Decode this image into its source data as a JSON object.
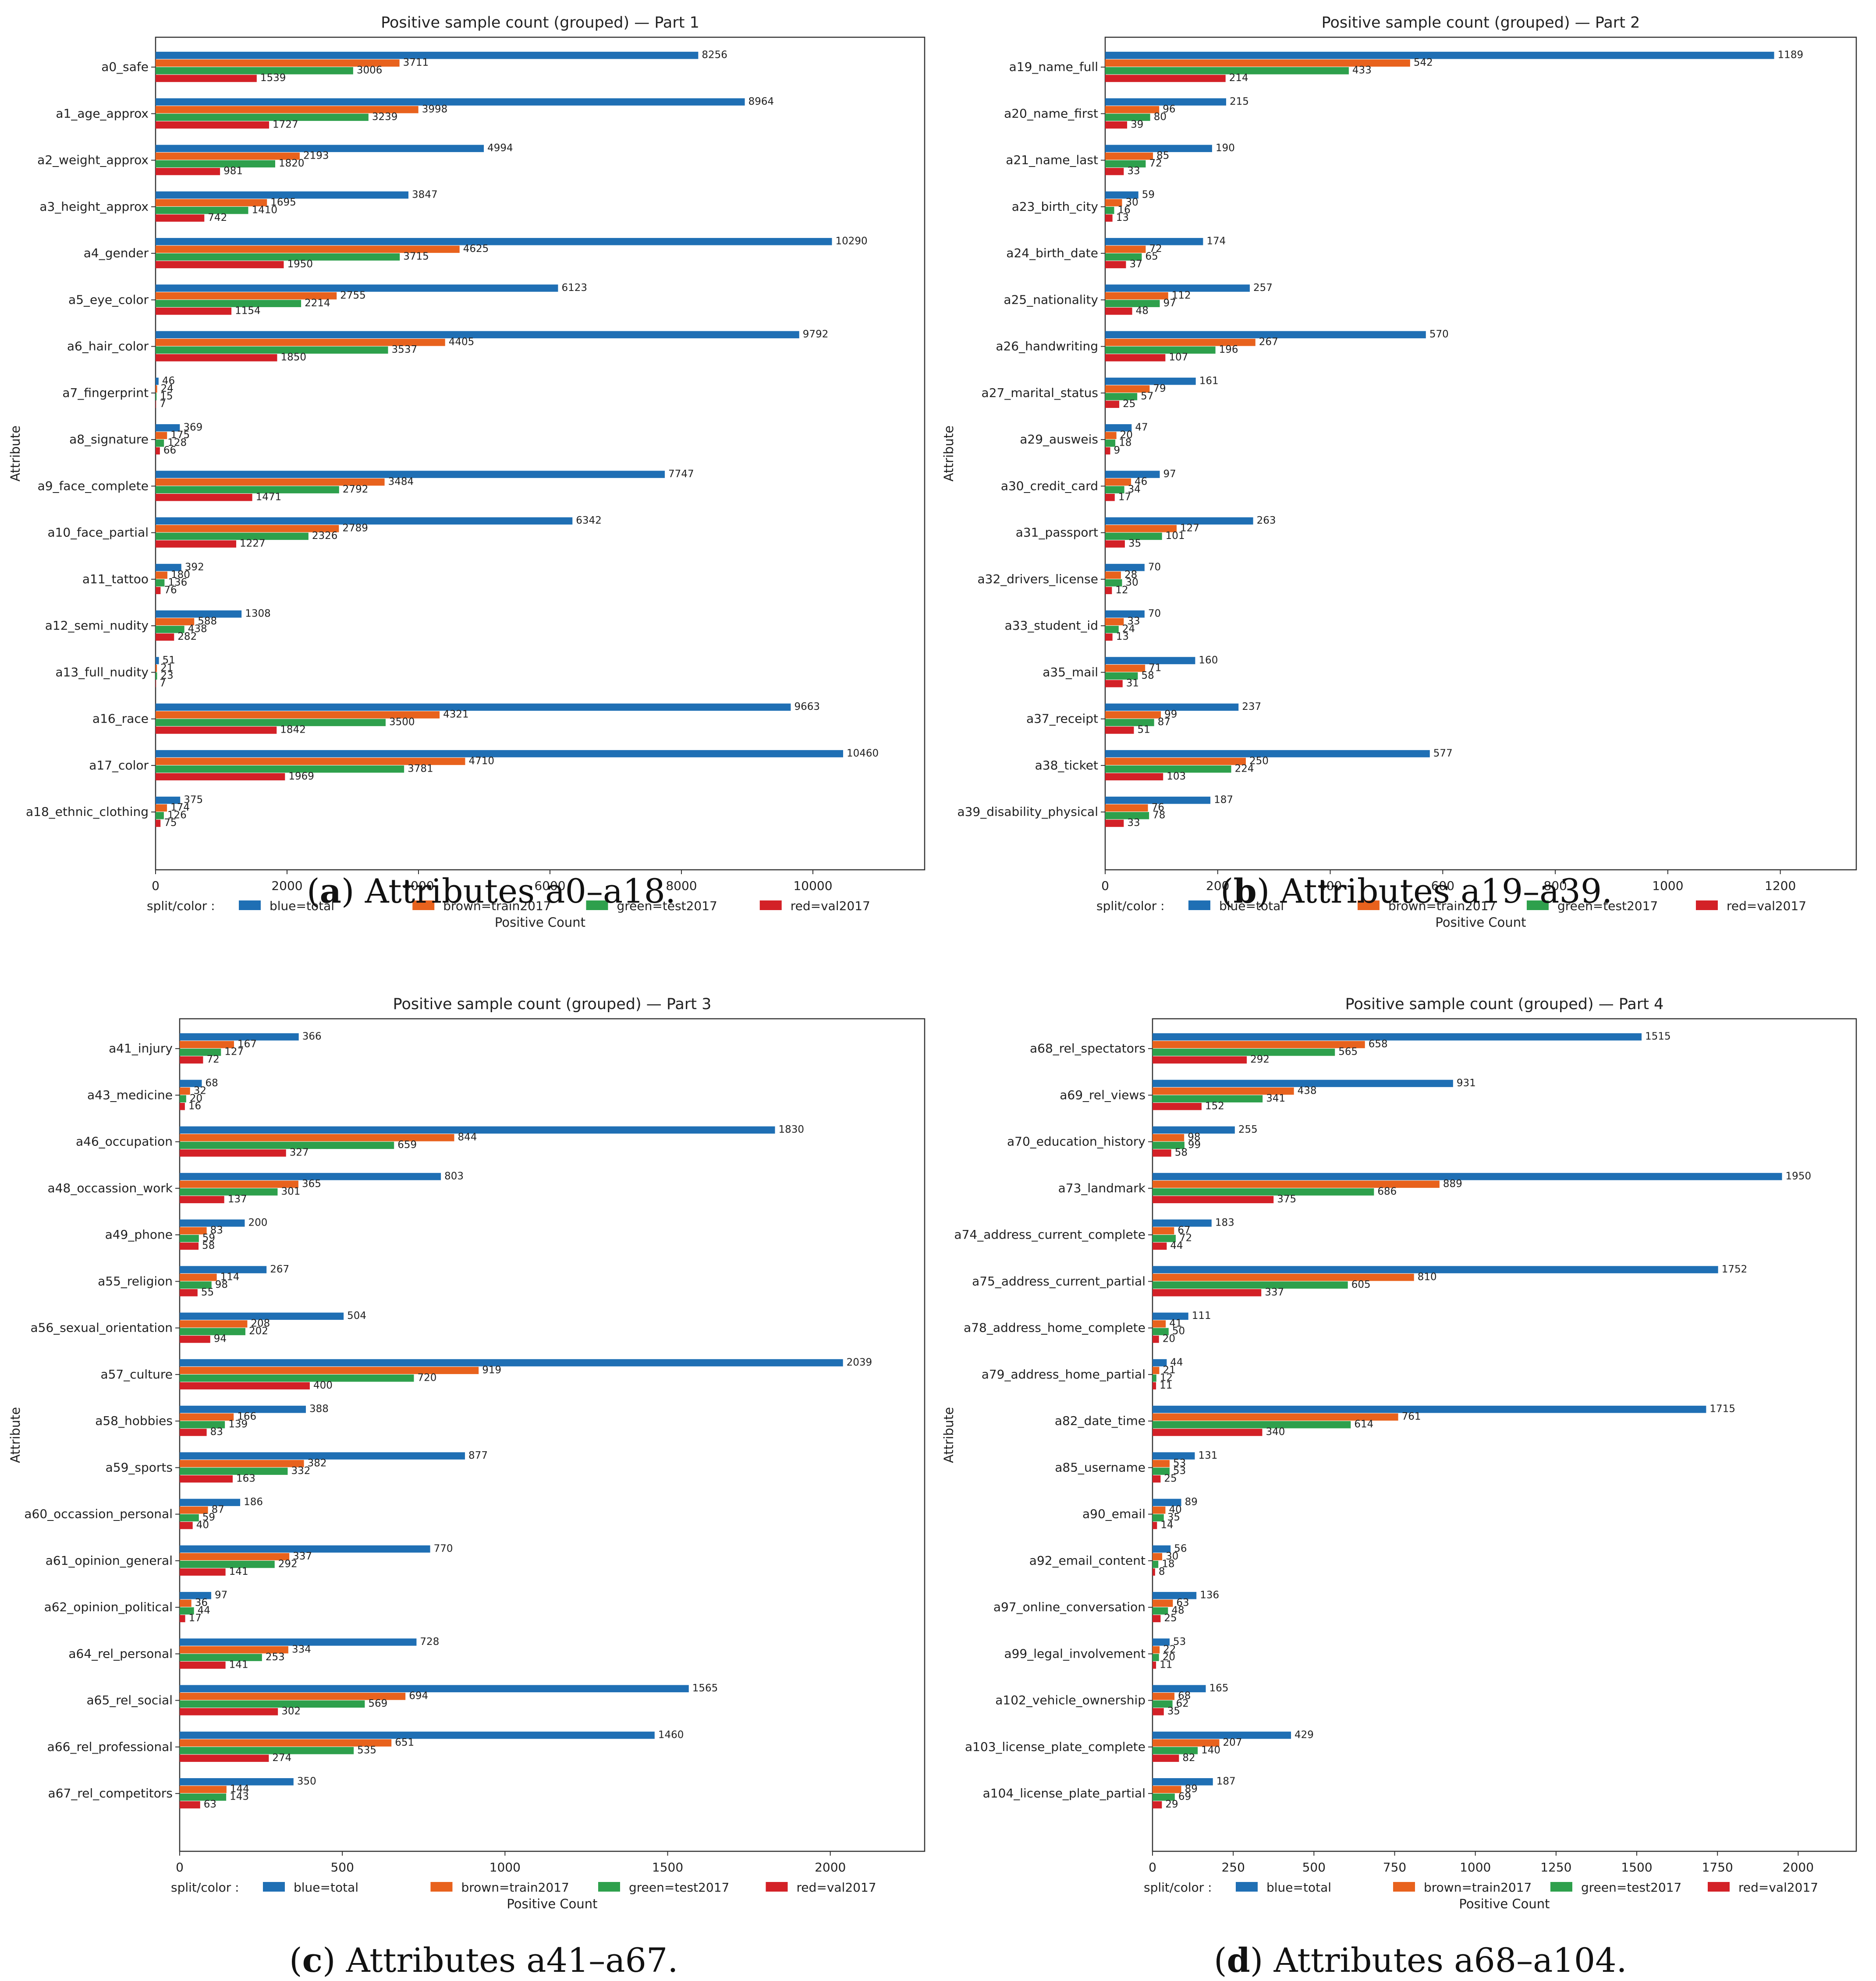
{
  "chart_data": [
    {
      "type": "bar",
      "orientation": "horizontal",
      "title": "Positive sample count (grouped)  —  Part 1",
      "xlabel": "Positive Count",
      "ylabel": "Attribute",
      "xlim": [
        0,
        11700
      ],
      "xticks": [
        0,
        2000,
        4000,
        6000,
        8000,
        10000
      ],
      "categories": [
        "a0_safe",
        "a1_age_approx",
        "a2_weight_approx",
        "a3_height_approx",
        "a4_gender",
        "a5_eye_color",
        "a6_hair_color",
        "a7_fingerprint",
        "a8_signature",
        "a9_face_complete",
        "a10_face_partial",
        "a11_tattoo",
        "a12_semi_nudity",
        "a13_full_nudity",
        "a16_race",
        "a17_color",
        "a18_ethnic_clothing"
      ],
      "series": [
        {
          "name": "total",
          "values": [
            8256,
            8964,
            4994,
            3847,
            10290,
            6123,
            9792,
            46,
            369,
            7747,
            6342,
            392,
            1308,
            51,
            9663,
            10460,
            375
          ]
        },
        {
          "name": "train2017",
          "values": [
            3711,
            3998,
            2193,
            1695,
            4625,
            2755,
            4405,
            24,
            175,
            3484,
            2789,
            180,
            588,
            21,
            4321,
            4710,
            174
          ]
        },
        {
          "name": "test2017",
          "values": [
            3006,
            3239,
            1820,
            1410,
            3715,
            2214,
            3537,
            15,
            128,
            2792,
            2326,
            136,
            438,
            23,
            3500,
            3781,
            126
          ]
        },
        {
          "name": "val2017",
          "values": [
            1539,
            1727,
            981,
            742,
            1950,
            1154,
            1850,
            7,
            66,
            1471,
            1227,
            76,
            282,
            7,
            1842,
            1969,
            75
          ]
        }
      ],
      "caption_label": "a",
      "caption_text": "Attributes a0–a18."
    },
    {
      "type": "bar",
      "orientation": "horizontal",
      "title": "Positive sample count (grouped)  —  Part 2",
      "xlabel": "Positive Count",
      "ylabel": "Attribute",
      "xlim": [
        0,
        1335
      ],
      "xticks": [
        0,
        200,
        400,
        600,
        800,
        1000,
        1200
      ],
      "categories": [
        "a19_name_full",
        "a20_name_first",
        "a21_name_last",
        "a23_birth_city",
        "a24_birth_date",
        "a25_nationality",
        "a26_handwriting",
        "a27_marital_status",
        "a29_ausweis",
        "a30_credit_card",
        "a31_passport",
        "a32_drivers_license",
        "a33_student_id",
        "a35_mail",
        "a37_receipt",
        "a38_ticket",
        "a39_disability_physical"
      ],
      "series": [
        {
          "name": "total",
          "values": [
            1189,
            215,
            190,
            59,
            174,
            257,
            570,
            161,
            47,
            97,
            263,
            70,
            70,
            160,
            237,
            577,
            187
          ]
        },
        {
          "name": "train2017",
          "values": [
            542,
            96,
            85,
            30,
            72,
            112,
            267,
            79,
            20,
            46,
            127,
            28,
            33,
            71,
            99,
            250,
            76
          ]
        },
        {
          "name": "test2017",
          "values": [
            433,
            80,
            72,
            16,
            65,
            97,
            196,
            57,
            18,
            34,
            101,
            30,
            24,
            58,
            87,
            224,
            78
          ]
        },
        {
          "name": "val2017",
          "values": [
            214,
            39,
            33,
            13,
            37,
            48,
            107,
            25,
            9,
            17,
            35,
            12,
            13,
            31,
            51,
            103,
            33
          ]
        }
      ],
      "caption_label": "b",
      "caption_text": "Attributes a19–a39."
    },
    {
      "type": "bar",
      "orientation": "horizontal",
      "title": "Positive sample count (grouped)  —  Part 3",
      "xlabel": "Positive Count",
      "ylabel": "Attribute",
      "xlim": [
        0,
        2290
      ],
      "xticks": [
        0,
        500,
        1000,
        1500,
        2000
      ],
      "categories": [
        "a41_injury",
        "a43_medicine",
        "a46_occupation",
        "a48_occassion_work",
        "a49_phone",
        "a55_religion",
        "a56_sexual_orientation",
        "a57_culture",
        "a58_hobbies",
        "a59_sports",
        "a60_occassion_personal",
        "a61_opinion_general",
        "a62_opinion_political",
        "a64_rel_personal",
        "a65_rel_social",
        "a66_rel_professional",
        "a67_rel_competitors"
      ],
      "series": [
        {
          "name": "total",
          "values": [
            366,
            68,
            1830,
            803,
            200,
            267,
            504,
            2039,
            388,
            877,
            186,
            770,
            97,
            728,
            1565,
            1460,
            350
          ]
        },
        {
          "name": "train2017",
          "values": [
            167,
            32,
            844,
            365,
            83,
            114,
            208,
            919,
            166,
            382,
            87,
            337,
            36,
            334,
            694,
            651,
            144
          ]
        },
        {
          "name": "test2017",
          "values": [
            127,
            20,
            659,
            301,
            59,
            98,
            202,
            720,
            139,
            332,
            59,
            292,
            44,
            253,
            569,
            535,
            143
          ]
        },
        {
          "name": "val2017",
          "values": [
            72,
            16,
            327,
            137,
            58,
            55,
            94,
            400,
            83,
            163,
            40,
            141,
            17,
            141,
            302,
            274,
            63
          ]
        }
      ],
      "caption_label": "c",
      "caption_text": "Attributes a41–a67."
    },
    {
      "type": "bar",
      "orientation": "horizontal",
      "title": "Positive sample count (grouped)  —  Part 4",
      "xlabel": "Positive Count",
      "ylabel": "Attribute",
      "xlim": [
        0,
        2180
      ],
      "xticks": [
        0,
        250,
        500,
        750,
        1000,
        1250,
        1500,
        1750,
        2000
      ],
      "categories": [
        "a68_rel_spectators",
        "a69_rel_views",
        "a70_education_history",
        "a73_landmark",
        "a74_address_current_complete",
        "a75_address_current_partial",
        "a78_address_home_complete",
        "a79_address_home_partial",
        "a82_date_time",
        "a85_username",
        "a90_email",
        "a92_email_content",
        "a97_online_conversation",
        "a99_legal_involvement",
        "a102_vehicle_ownership",
        "a103_license_plate_complete",
        "a104_license_plate_partial"
      ],
      "series": [
        {
          "name": "total",
          "values": [
            1515,
            931,
            255,
            1950,
            183,
            1752,
            111,
            44,
            1715,
            131,
            89,
            56,
            136,
            53,
            165,
            429,
            187
          ]
        },
        {
          "name": "train2017",
          "values": [
            658,
            438,
            98,
            889,
            67,
            810,
            41,
            21,
            761,
            53,
            40,
            30,
            63,
            22,
            68,
            207,
            89
          ]
        },
        {
          "name": "test2017",
          "values": [
            565,
            341,
            99,
            686,
            72,
            605,
            50,
            12,
            614,
            53,
            35,
            18,
            48,
            20,
            62,
            140,
            69
          ]
        },
        {
          "name": "val2017",
          "values": [
            292,
            152,
            58,
            375,
            44,
            337,
            20,
            11,
            340,
            25,
            14,
            8,
            25,
            11,
            35,
            82,
            29
          ]
        }
      ],
      "caption_label": "d",
      "caption_text": "Attributes a68–a104."
    }
  ],
  "legend": {
    "prefix": "split/color :",
    "items": [
      "blue=total",
      "brown=train2017",
      "green=test2017",
      "red=val2017"
    ]
  },
  "colors": [
    "#1f6fb4",
    "#e8621d",
    "#2ea04c",
    "#d32127"
  ]
}
